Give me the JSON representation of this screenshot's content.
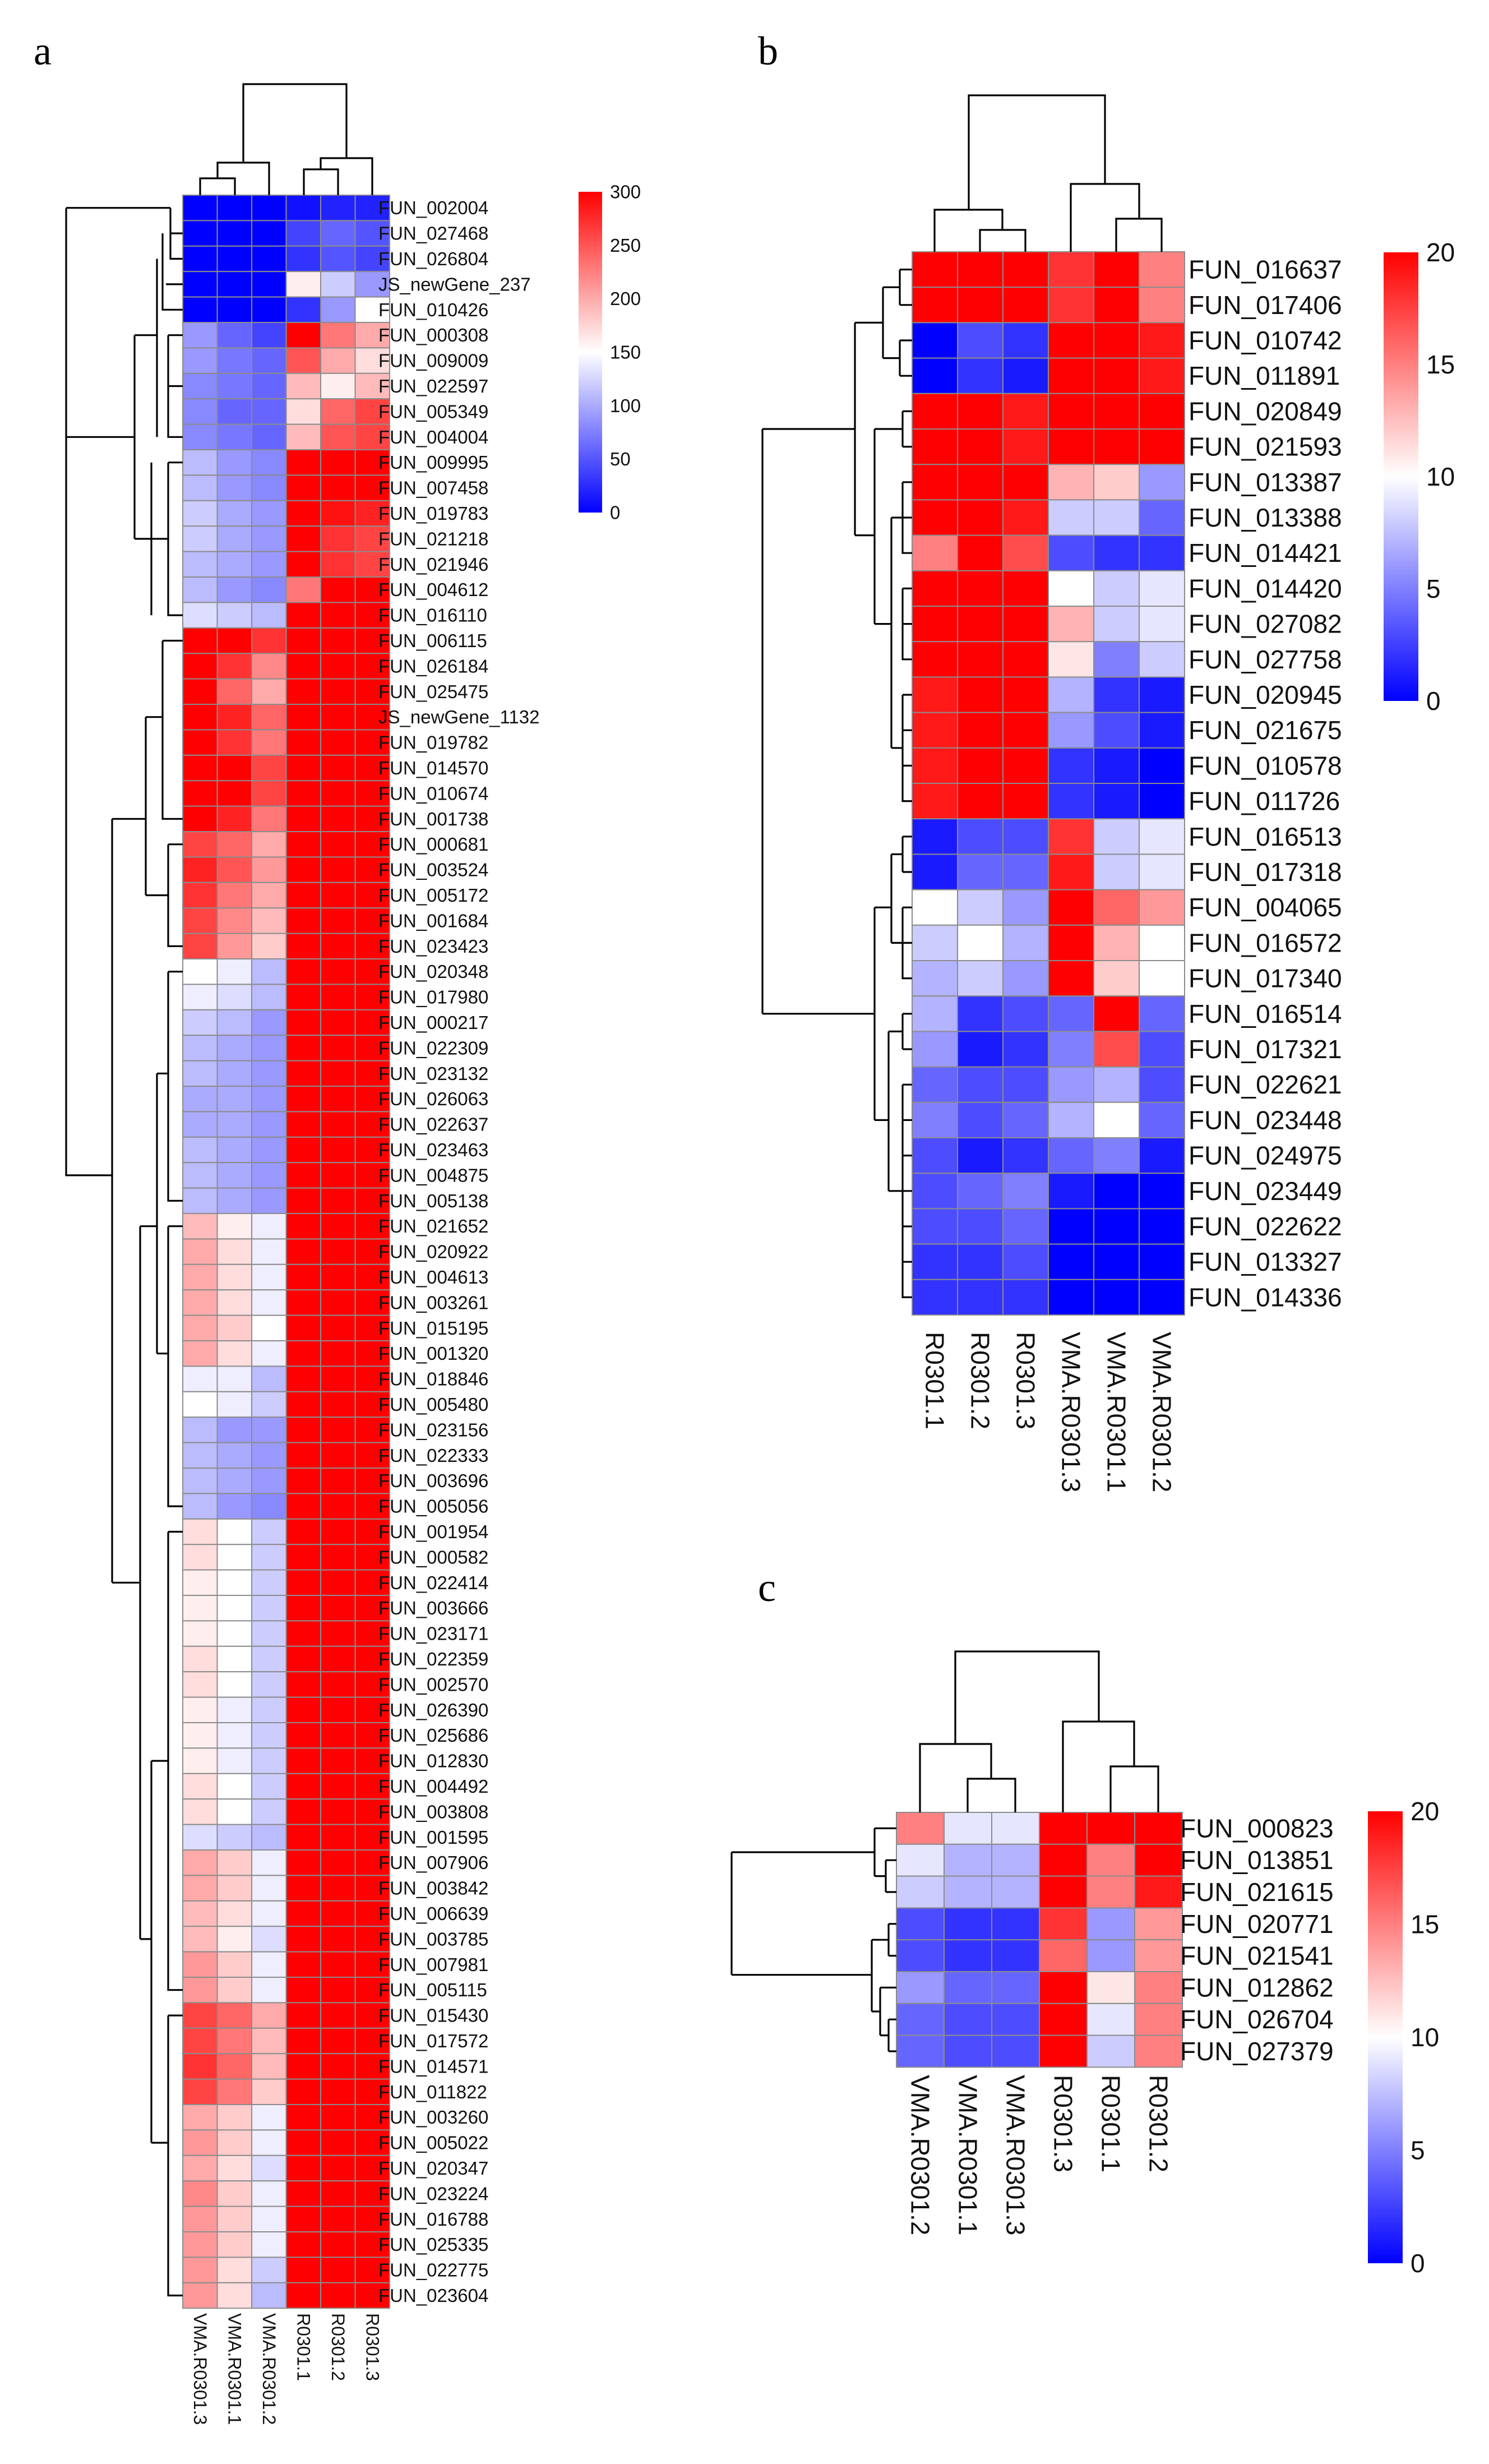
{
  "figure": {
    "panels": [
      "a",
      "b",
      "c"
    ]
  },
  "chart_data": [
    {
      "panel": "a",
      "type": "heatmap",
      "title": "",
      "columns": [
        "VMA.R0301.3",
        "VMA.R0301.1",
        "VMA.R0301.2",
        "R0301.1",
        "R0301.2",
        "R0301.3"
      ],
      "rows": [
        "FUN_002004",
        "FUN_027468",
        "FUN_026804",
        "JS_newGene_237",
        "FUN_010426",
        "FUN_000308",
        "FUN_009009",
        "FUN_022597",
        "FUN_005349",
        "FUN_004004",
        "FUN_009995",
        "FUN_007458",
        "FUN_019783",
        "FUN_021218",
        "FUN_021946",
        "FUN_004612",
        "FUN_016110",
        "FUN_006115",
        "FUN_026184",
        "FUN_025475",
        "JS_newGene_1132",
        "FUN_019782",
        "FUN_014570",
        "FUN_010674",
        "FUN_001738",
        "FUN_000681",
        "FUN_003524",
        "FUN_005172",
        "FUN_001684",
        "FUN_023423",
        "FUN_020348",
        "FUN_017980",
        "FUN_000217",
        "FUN_022309",
        "FUN_023132",
        "FUN_026063",
        "FUN_022637",
        "FUN_023463",
        "FUN_004875",
        "FUN_005138",
        "FUN_021652",
        "FUN_020922",
        "FUN_004613",
        "FUN_003261",
        "FUN_015195",
        "FUN_001320",
        "FUN_018846",
        "FUN_005480",
        "FUN_023156",
        "FUN_022333",
        "FUN_003696",
        "FUN_005056",
        "FUN_001954",
        "FUN_000582",
        "FUN_022414",
        "FUN_003666",
        "FUN_023171",
        "FUN_022359",
        "FUN_002570",
        "FUN_026390",
        "FUN_025686",
        "FUN_012830",
        "FUN_004492",
        "FUN_003808",
        "FUN_001595",
        "FUN_007906",
        "FUN_003842",
        "FUN_006639",
        "FUN_003785",
        "FUN_007981",
        "FUN_005115",
        "FUN_015430",
        "FUN_017572",
        "FUN_014571",
        "FUN_011822",
        "FUN_003260",
        "FUN_005022",
        "FUN_020347",
        "FUN_023224",
        "FUN_016788",
        "FUN_025335",
        "FUN_022775",
        "FUN_023604"
      ],
      "values": [
        [
          0,
          0,
          0,
          10,
          20,
          20
        ],
        [
          0,
          0,
          0,
          40,
          60,
          50
        ],
        [
          0,
          0,
          0,
          30,
          50,
          40
        ],
        [
          0,
          0,
          0,
          160,
          120,
          90
        ],
        [
          0,
          0,
          0,
          30,
          90,
          150
        ],
        [
          90,
          60,
          40,
          300,
          230,
          200
        ],
        [
          90,
          70,
          60,
          250,
          200,
          170
        ],
        [
          80,
          70,
          60,
          190,
          160,
          190
        ],
        [
          80,
          60,
          60,
          170,
          240,
          260
        ],
        [
          80,
          70,
          60,
          190,
          250,
          260
        ],
        [
          110,
          90,
          80,
          300,
          300,
          300
        ],
        [
          110,
          90,
          80,
          300,
          300,
          300
        ],
        [
          120,
          100,
          90,
          300,
          290,
          280
        ],
        [
          120,
          100,
          90,
          300,
          270,
          260
        ],
        [
          110,
          100,
          90,
          300,
          270,
          260
        ],
        [
          110,
          90,
          80,
          230,
          300,
          300
        ],
        [
          130,
          120,
          110,
          300,
          300,
          300
        ],
        [
          300,
          300,
          270,
          300,
          300,
          300
        ],
        [
          300,
          270,
          220,
          300,
          300,
          300
        ],
        [
          300,
          240,
          200,
          300,
          300,
          300
        ],
        [
          300,
          280,
          240,
          300,
          300,
          300
        ],
        [
          300,
          270,
          230,
          300,
          300,
          300
        ],
        [
          300,
          300,
          260,
          300,
          300,
          300
        ],
        [
          300,
          300,
          260,
          300,
          300,
          300
        ],
        [
          300,
          280,
          230,
          300,
          300,
          300
        ],
        [
          260,
          240,
          200,
          300,
          300,
          300
        ],
        [
          280,
          250,
          210,
          300,
          300,
          300
        ],
        [
          270,
          230,
          200,
          300,
          300,
          300
        ],
        [
          260,
          220,
          190,
          300,
          300,
          300
        ],
        [
          260,
          210,
          180,
          300,
          300,
          300
        ],
        [
          150,
          140,
          110,
          300,
          300,
          300
        ],
        [
          140,
          130,
          110,
          300,
          300,
          300
        ],
        [
          120,
          110,
          90,
          300,
          300,
          300
        ],
        [
          110,
          100,
          90,
          300,
          300,
          300
        ],
        [
          110,
          100,
          90,
          300,
          300,
          300
        ],
        [
          100,
          100,
          90,
          300,
          300,
          300
        ],
        [
          100,
          100,
          90,
          300,
          300,
          300
        ],
        [
          110,
          100,
          90,
          300,
          300,
          300
        ],
        [
          110,
          100,
          90,
          300,
          300,
          300
        ],
        [
          110,
          100,
          90,
          300,
          300,
          300
        ],
        [
          190,
          160,
          140,
          300,
          300,
          300
        ],
        [
          200,
          170,
          140,
          300,
          300,
          300
        ],
        [
          200,
          170,
          140,
          300,
          300,
          300
        ],
        [
          200,
          170,
          140,
          300,
          300,
          300
        ],
        [
          200,
          180,
          150,
          300,
          300,
          300
        ],
        [
          200,
          170,
          140,
          300,
          300,
          300
        ],
        [
          140,
          140,
          110,
          300,
          300,
          300
        ],
        [
          150,
          140,
          120,
          300,
          300,
          300
        ],
        [
          110,
          90,
          90,
          300,
          300,
          300
        ],
        [
          110,
          100,
          90,
          300,
          300,
          300
        ],
        [
          110,
          100,
          90,
          300,
          300,
          300
        ],
        [
          110,
          90,
          80,
          300,
          300,
          300
        ],
        [
          170,
          150,
          120,
          300,
          300,
          300
        ],
        [
          170,
          150,
          120,
          300,
          300,
          300
        ],
        [
          160,
          150,
          120,
          300,
          300,
          300
        ],
        [
          160,
          150,
          120,
          300,
          300,
          300
        ],
        [
          160,
          150,
          120,
          300,
          300,
          300
        ],
        [
          170,
          150,
          120,
          300,
          300,
          300
        ],
        [
          170,
          150,
          120,
          300,
          300,
          300
        ],
        [
          160,
          140,
          120,
          300,
          300,
          300
        ],
        [
          160,
          140,
          120,
          300,
          300,
          300
        ],
        [
          160,
          140,
          120,
          300,
          300,
          300
        ],
        [
          170,
          150,
          120,
          300,
          300,
          300
        ],
        [
          170,
          150,
          120,
          300,
          300,
          300
        ],
        [
          130,
          120,
          110,
          300,
          300,
          300
        ],
        [
          200,
          180,
          140,
          300,
          300,
          300
        ],
        [
          200,
          180,
          140,
          300,
          300,
          300
        ],
        [
          190,
          170,
          140,
          300,
          300,
          300
        ],
        [
          190,
          160,
          130,
          300,
          300,
          300
        ],
        [
          210,
          180,
          140,
          300,
          300,
          300
        ],
        [
          210,
          180,
          140,
          300,
          300,
          300
        ],
        [
          260,
          240,
          200,
          300,
          300,
          300
        ],
        [
          260,
          230,
          190,
          300,
          300,
          300
        ],
        [
          270,
          240,
          190,
          300,
          300,
          300
        ],
        [
          260,
          230,
          180,
          300,
          300,
          300
        ],
        [
          200,
          180,
          140,
          300,
          300,
          300
        ],
        [
          210,
          180,
          140,
          300,
          300,
          300
        ],
        [
          200,
          170,
          130,
          300,
          300,
          300
        ],
        [
          220,
          180,
          140,
          300,
          300,
          300
        ],
        [
          210,
          180,
          140,
          300,
          300,
          300
        ],
        [
          210,
          180,
          140,
          300,
          300,
          300
        ],
        [
          210,
          170,
          120,
          300,
          300,
          300
        ],
        [
          210,
          170,
          110,
          300,
          300,
          300
        ]
      ],
      "legend": {
        "min": 0,
        "max": 300,
        "ticks": [
          300,
          250,
          200,
          150,
          100,
          50,
          0
        ],
        "mid": 150
      }
    },
    {
      "panel": "b",
      "type": "heatmap",
      "title": "",
      "columns": [
        "R0301.1",
        "R0301.2",
        "R0301.3",
        "VMA.R0301.3",
        "VMA.R0301.1",
        "VMA.R0301.2"
      ],
      "rows": [
        "FUN_016637",
        "FUN_017406",
        "FUN_010742",
        "FUN_011891",
        "FUN_020849",
        "FUN_021593",
        "FUN_013387",
        "FUN_013388",
        "FUN_014421",
        "FUN_014420",
        "FUN_027082",
        "FUN_027758",
        "FUN_020945",
        "FUN_021675",
        "FUN_010578",
        "FUN_011726",
        "FUN_016513",
        "FUN_017318",
        "FUN_004065",
        "FUN_016572",
        "FUN_017340",
        "FUN_016514",
        "FUN_017321",
        "FUN_022621",
        "FUN_023448",
        "FUN_024975",
        "FUN_023449",
        "FUN_022622",
        "FUN_013327",
        "FUN_014336"
      ],
      "values": [
        [
          20,
          20,
          20,
          18,
          20,
          15
        ],
        [
          20,
          20,
          20,
          18,
          20,
          15
        ],
        [
          0,
          3,
          2,
          20,
          20,
          19
        ],
        [
          0,
          2,
          1,
          20,
          20,
          19
        ],
        [
          20,
          20,
          19,
          20,
          20,
          20
        ],
        [
          20,
          20,
          19,
          20,
          20,
          20
        ],
        [
          20,
          20,
          20,
          13,
          12,
          6
        ],
        [
          20,
          20,
          19,
          8,
          8,
          4
        ],
        [
          15,
          20,
          17,
          3,
          2,
          2
        ],
        [
          20,
          20,
          20,
          10,
          8,
          9
        ],
        [
          20,
          20,
          20,
          13,
          8,
          9
        ],
        [
          20,
          20,
          20,
          11,
          5,
          8
        ],
        [
          19,
          20,
          20,
          7,
          2,
          1
        ],
        [
          19,
          20,
          20,
          6,
          3,
          1
        ],
        [
          19,
          20,
          20,
          2,
          1,
          0
        ],
        [
          19,
          20,
          20,
          2,
          1,
          0
        ],
        [
          1,
          3,
          3,
          18,
          8,
          9
        ],
        [
          1,
          4,
          4,
          19,
          8,
          9
        ],
        [
          10,
          8,
          6,
          20,
          16,
          14
        ],
        [
          8,
          10,
          7,
          20,
          13,
          10
        ],
        [
          7,
          8,
          6,
          20,
          12,
          10
        ],
        [
          7,
          2,
          3,
          4,
          20,
          4
        ],
        [
          6,
          1,
          2,
          5,
          17,
          3
        ],
        [
          4,
          3,
          3,
          6,
          7,
          3
        ],
        [
          5,
          3,
          4,
          7,
          10,
          4
        ],
        [
          3,
          1,
          2,
          4,
          5,
          1
        ],
        [
          3,
          4,
          5,
          1,
          0,
          0
        ],
        [
          3,
          3,
          4,
          0,
          0,
          0
        ],
        [
          2,
          2,
          3,
          0,
          0,
          0
        ],
        [
          2,
          2,
          2,
          0,
          0,
          0
        ]
      ],
      "legend": {
        "min": 0,
        "max": 20,
        "ticks": [
          20,
          15,
          10,
          5,
          0
        ],
        "mid": 10
      }
    },
    {
      "panel": "c",
      "type": "heatmap",
      "title": "",
      "columns": [
        "VMA.R0301.2",
        "VMA.R0301.1",
        "VMA.R0301.3",
        "R0301.3",
        "R0301.1",
        "R0301.2"
      ],
      "rows": [
        "FUN_000823",
        "FUN_013851",
        "FUN_021615",
        "FUN_020771",
        "FUN_021541",
        "FUN_012862",
        "FUN_026704",
        "FUN_027379"
      ],
      "values": [
        [
          15,
          9,
          9,
          20,
          20,
          20
        ],
        [
          9,
          7,
          7,
          20,
          15,
          20
        ],
        [
          8,
          7,
          7,
          20,
          15,
          19
        ],
        [
          3,
          2,
          2,
          18,
          6,
          14
        ],
        [
          3,
          2,
          2,
          16,
          6,
          14
        ],
        [
          6,
          4,
          4,
          20,
          11,
          15
        ],
        [
          4,
          3,
          3,
          20,
          9,
          15
        ],
        [
          4,
          3,
          3,
          20,
          8,
          15
        ]
      ],
      "legend": {
        "min": 0,
        "max": 20,
        "ticks": [
          20,
          15,
          10,
          5,
          0
        ],
        "mid": 10
      }
    }
  ]
}
